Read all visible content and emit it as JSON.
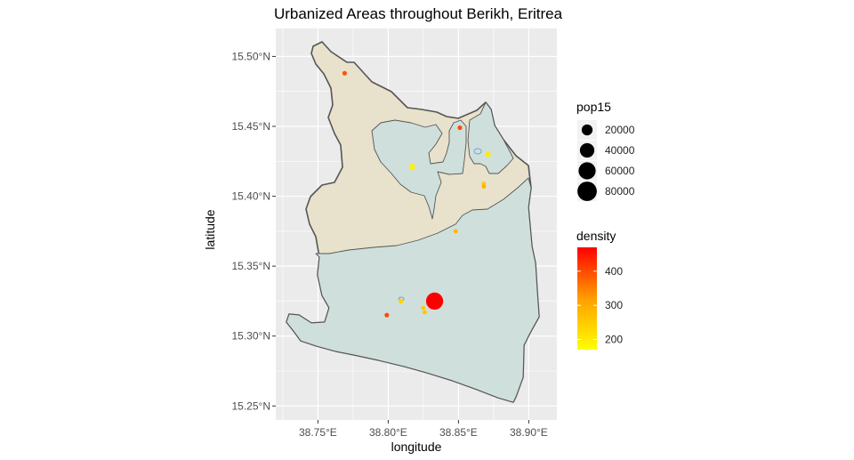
{
  "chart_data": {
    "type": "map",
    "title": "Urbanized Areas throughout Berikh, Eritrea",
    "xlabel": "longitude",
    "ylabel": "latitude",
    "xlim": [
      38.72,
      38.92
    ],
    "ylim": [
      15.24,
      15.52
    ],
    "x_ticks": [
      {
        "value": 38.75,
        "label": "38.75°E"
      },
      {
        "value": 38.8,
        "label": "38.80°E"
      },
      {
        "value": 38.85,
        "label": "38.85°E"
      },
      {
        "value": 38.9,
        "label": "38.90°E"
      }
    ],
    "y_ticks": [
      {
        "value": 15.25,
        "label": "15.25°N"
      },
      {
        "value": 15.3,
        "label": "15.30°N"
      },
      {
        "value": 15.35,
        "label": "15.35°N"
      },
      {
        "value": 15.4,
        "label": "15.40°N"
      },
      {
        "value": 15.45,
        "label": "15.45°N"
      },
      {
        "value": 15.5,
        "label": "15.50°N"
      }
    ],
    "grid": true,
    "colors": {
      "panel": "#ebebeb",
      "grid": "#ffffff",
      "boundary_stroke": "#555555",
      "beige_fill": "#e8e1cc",
      "teal_fill": "#cfe0dc",
      "density_low": "#ffff00",
      "density_mid": "#ff9e00",
      "density_high": "#ff0000"
    },
    "points": [
      {
        "lon": 38.769,
        "lat": 15.488,
        "pop15": 1200,
        "density": 390
      },
      {
        "lon": 38.851,
        "lat": 15.449,
        "pop15": 1200,
        "density": 400
      },
      {
        "lon": 38.817,
        "lat": 15.421,
        "pop15": 3500,
        "density": 190
      },
      {
        "lon": 38.871,
        "lat": 15.43,
        "pop15": 2500,
        "density": 200
      },
      {
        "lon": 38.868,
        "lat": 15.409,
        "pop15": 1000,
        "density": 250
      },
      {
        "lon": 38.868,
        "lat": 15.407,
        "pop15": 800,
        "density": 290
      },
      {
        "lon": 38.848,
        "lat": 15.375,
        "pop15": 900,
        "density": 280
      },
      {
        "lon": 38.809,
        "lat": 15.325,
        "pop15": 1500,
        "density": 240
      },
      {
        "lon": 38.833,
        "lat": 15.325,
        "pop15": 60000,
        "density": 470
      },
      {
        "lon": 38.825,
        "lat": 15.32,
        "pop15": 800,
        "density": 250
      },
      {
        "lon": 38.826,
        "lat": 15.317,
        "pop15": 900,
        "density": 260
      },
      {
        "lon": 38.799,
        "lat": 15.315,
        "pop15": 1200,
        "density": 400
      }
    ],
    "legend": {
      "placement": "right",
      "size": {
        "title": "pop15",
        "entries": [
          {
            "value": 20000,
            "label": "20000"
          },
          {
            "value": 40000,
            "label": "40000"
          },
          {
            "value": 60000,
            "label": "60000"
          },
          {
            "value": 80000,
            "label": "80000"
          }
        ]
      },
      "color": {
        "title": "density",
        "min": 170,
        "max": 470,
        "ticks": [
          {
            "value": 200,
            "label": "200"
          },
          {
            "value": 300,
            "label": "300"
          },
          {
            "value": 400,
            "label": "400"
          }
        ]
      }
    }
  }
}
